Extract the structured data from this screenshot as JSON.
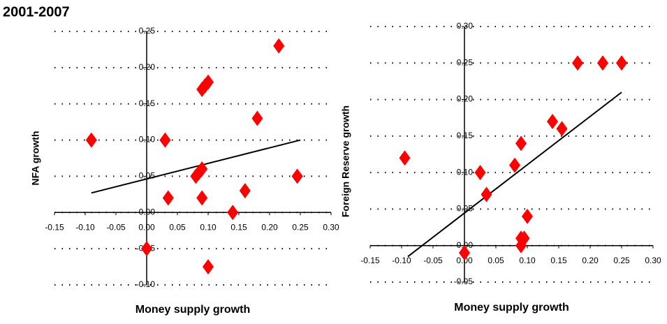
{
  "title": "2001-2007",
  "chart_data": [
    {
      "type": "scatter",
      "color": "#ff0000",
      "grid": true,
      "x_label": "Money supply growth",
      "y_label": "NFA growth",
      "xlim": [
        -0.15,
        0.3
      ],
      "ylim": [
        -0.1,
        0.25
      ],
      "xticks": [
        {
          "value": -0.15,
          "label": "-0.15"
        },
        {
          "value": -0.1,
          "label": "-0.10"
        },
        {
          "value": -0.05,
          "label": "-0.05"
        },
        {
          "value": 0,
          "label": "0.00"
        },
        {
          "value": 0.05,
          "label": "0.05"
        },
        {
          "value": 0.1,
          "label": "0.10"
        },
        {
          "value": 0.15,
          "label": "0.15"
        },
        {
          "value": 0.2,
          "label": "0.20"
        },
        {
          "value": 0.25,
          "label": "0.25"
        },
        {
          "value": 0.3,
          "label": "0.30"
        }
      ],
      "yticks": [
        {
          "value": -0.1,
          "label": "-0.10"
        },
        {
          "value": -0.05,
          "label": "-0.05"
        },
        {
          "value": 0,
          "label": "0.00"
        },
        {
          "value": 0.05,
          "label": "0.05"
        },
        {
          "value": 0.1,
          "label": "0.10"
        },
        {
          "value": 0.15,
          "label": "0.15"
        },
        {
          "value": 0.2,
          "label": "0.20"
        },
        {
          "value": 0.25,
          "label": "0.25"
        }
      ],
      "x": [
        -0.09,
        0.03,
        0.035,
        0.08,
        0.085,
        0.09,
        0.09,
        0.09,
        0.095,
        0.1,
        0.14,
        0.16,
        0.18,
        0.215,
        0.245,
        0.0,
        0.1
      ],
      "values": [
        0.1,
        0.1,
        0.02,
        0.05,
        0.055,
        0.06,
        0.02,
        0.17,
        0.175,
        0.18,
        0.0,
        0.03,
        0.13,
        0.23,
        0.05,
        -0.05,
        -0.075
      ],
      "trendline": {
        "x": [
          -0.09,
          0.25
        ],
        "y": [
          0.027,
          0.1
        ]
      }
    },
    {
      "type": "scatter",
      "color": "#ff0000",
      "grid": true,
      "x_label": "Money supply growth",
      "y_label": "Foreign Reserve growth",
      "xlim": [
        -0.15,
        0.3
      ],
      "ylim": [
        -0.05,
        0.3
      ],
      "xticks": [
        {
          "value": -0.15,
          "label": "-0.15"
        },
        {
          "value": -0.1,
          "label": "-0.10"
        },
        {
          "value": -0.05,
          "label": "-0.05"
        },
        {
          "value": 0,
          "label": "0.00"
        },
        {
          "value": 0.05,
          "label": "0.05"
        },
        {
          "value": 0.1,
          "label": "0.10"
        },
        {
          "value": 0.15,
          "label": "0.15"
        },
        {
          "value": 0.2,
          "label": "0.20"
        },
        {
          "value": 0.25,
          "label": "0.25"
        },
        {
          "value": 0.3,
          "label": "0.30"
        }
      ],
      "yticks": [
        {
          "value": -0.05,
          "label": "-0.05"
        },
        {
          "value": 0,
          "label": "0.00"
        },
        {
          "value": 0.05,
          "label": "0.05"
        },
        {
          "value": 0.1,
          "label": "0.10"
        },
        {
          "value": 0.15,
          "label": "0.15"
        },
        {
          "value": 0.2,
          "label": "0.20"
        },
        {
          "value": 0.25,
          "label": "0.25"
        },
        {
          "value": 0.3,
          "label": "0.30"
        }
      ],
      "x": [
        -0.095,
        0.0,
        0.025,
        0.035,
        0.08,
        0.09,
        0.09,
        0.09,
        0.095,
        0.1,
        0.14,
        0.155,
        0.18,
        0.22,
        0.25
      ],
      "values": [
        0.12,
        -0.01,
        0.1,
        0.07,
        0.11,
        0.14,
        0.01,
        0.0,
        0.01,
        0.04,
        0.17,
        0.16,
        0.25,
        0.25,
        0.25
      ],
      "trendline": {
        "x": [
          -0.09,
          0.25
        ],
        "y": [
          -0.015,
          0.21
        ]
      }
    }
  ]
}
